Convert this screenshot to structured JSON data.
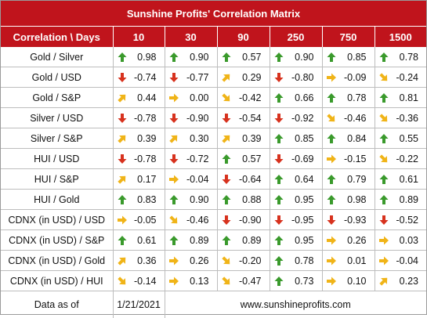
{
  "title": "Sunshine Profits' Correlation Matrix",
  "header": {
    "corner": "Correlation \\ Days",
    "columns": [
      "10",
      "30",
      "90",
      "250",
      "750",
      "1500"
    ]
  },
  "colors": {
    "header_bg": "#c0141c",
    "up": "#3a9a2c",
    "down": "#d7321e",
    "diag": "#f0b418",
    "flat": "#f0b418"
  },
  "rows": [
    {
      "label": "Gold / Silver",
      "cells": [
        {
          "value": "0.98",
          "icon": "up"
        },
        {
          "value": "0.90",
          "icon": "up"
        },
        {
          "value": "0.57",
          "icon": "up"
        },
        {
          "value": "0.90",
          "icon": "up"
        },
        {
          "value": "0.85",
          "icon": "up"
        },
        {
          "value": "0.78",
          "icon": "up"
        }
      ]
    },
    {
      "label": "Gold / USD",
      "cells": [
        {
          "value": "-0.74",
          "icon": "down"
        },
        {
          "value": "-0.77",
          "icon": "down"
        },
        {
          "value": "0.29",
          "icon": "up-right"
        },
        {
          "value": "-0.80",
          "icon": "down"
        },
        {
          "value": "-0.09",
          "icon": "right"
        },
        {
          "value": "-0.24",
          "icon": "down-right"
        }
      ]
    },
    {
      "label": "Gold / S&P",
      "cells": [
        {
          "value": "0.44",
          "icon": "up-right"
        },
        {
          "value": "0.00",
          "icon": "right"
        },
        {
          "value": "-0.42",
          "icon": "down-right"
        },
        {
          "value": "0.66",
          "icon": "up"
        },
        {
          "value": "0.78",
          "icon": "up"
        },
        {
          "value": "0.81",
          "icon": "up"
        }
      ]
    },
    {
      "label": "Silver / USD",
      "cells": [
        {
          "value": "-0.78",
          "icon": "down"
        },
        {
          "value": "-0.90",
          "icon": "down"
        },
        {
          "value": "-0.54",
          "icon": "down"
        },
        {
          "value": "-0.92",
          "icon": "down"
        },
        {
          "value": "-0.46",
          "icon": "down-right"
        },
        {
          "value": "-0.36",
          "icon": "down-right"
        }
      ]
    },
    {
      "label": "Silver / S&P",
      "cells": [
        {
          "value": "0.39",
          "icon": "up-right"
        },
        {
          "value": "0.30",
          "icon": "up-right"
        },
        {
          "value": "0.39",
          "icon": "up-right"
        },
        {
          "value": "0.85",
          "icon": "up"
        },
        {
          "value": "0.84",
          "icon": "up"
        },
        {
          "value": "0.55",
          "icon": "up"
        }
      ]
    },
    {
      "label": "HUI / USD",
      "cells": [
        {
          "value": "-0.78",
          "icon": "down"
        },
        {
          "value": "-0.72",
          "icon": "down"
        },
        {
          "value": "0.57",
          "icon": "up"
        },
        {
          "value": "-0.69",
          "icon": "down"
        },
        {
          "value": "-0.15",
          "icon": "right"
        },
        {
          "value": "-0.22",
          "icon": "down-right"
        }
      ]
    },
    {
      "label": "HUI / S&P",
      "cells": [
        {
          "value": "0.17",
          "icon": "up-right"
        },
        {
          "value": "-0.04",
          "icon": "right"
        },
        {
          "value": "-0.64",
          "icon": "down"
        },
        {
          "value": "0.64",
          "icon": "up"
        },
        {
          "value": "0.79",
          "icon": "up"
        },
        {
          "value": "0.61",
          "icon": "up"
        }
      ]
    },
    {
      "label": "HUI / Gold",
      "cells": [
        {
          "value": "0.83",
          "icon": "up"
        },
        {
          "value": "0.90",
          "icon": "up"
        },
        {
          "value": "0.88",
          "icon": "up"
        },
        {
          "value": "0.95",
          "icon": "up"
        },
        {
          "value": "0.98",
          "icon": "up"
        },
        {
          "value": "0.89",
          "icon": "up"
        }
      ]
    },
    {
      "label": "CDNX (in USD) / USD",
      "cells": [
        {
          "value": "-0.05",
          "icon": "right"
        },
        {
          "value": "-0.46",
          "icon": "down-right"
        },
        {
          "value": "-0.90",
          "icon": "down"
        },
        {
          "value": "-0.95",
          "icon": "down"
        },
        {
          "value": "-0.93",
          "icon": "down"
        },
        {
          "value": "-0.52",
          "icon": "down"
        }
      ]
    },
    {
      "label": "CDNX (in USD) / S&P",
      "cells": [
        {
          "value": "0.61",
          "icon": "up"
        },
        {
          "value": "0.89",
          "icon": "up"
        },
        {
          "value": "0.89",
          "icon": "up"
        },
        {
          "value": "0.95",
          "icon": "up"
        },
        {
          "value": "0.26",
          "icon": "right"
        },
        {
          "value": "0.03",
          "icon": "right"
        }
      ]
    },
    {
      "label": "CDNX (in USD) / Gold",
      "cells": [
        {
          "value": "0.36",
          "icon": "up-right"
        },
        {
          "value": "0.26",
          "icon": "right"
        },
        {
          "value": "-0.20",
          "icon": "down-right"
        },
        {
          "value": "0.78",
          "icon": "up"
        },
        {
          "value": "0.01",
          "icon": "right"
        },
        {
          "value": "-0.04",
          "icon": "right"
        }
      ]
    },
    {
      "label": "CDNX (in USD) / HUI",
      "cells": [
        {
          "value": "-0.14",
          "icon": "down-right"
        },
        {
          "value": "0.13",
          "icon": "right"
        },
        {
          "value": "-0.47",
          "icon": "down-right"
        },
        {
          "value": "0.73",
          "icon": "up"
        },
        {
          "value": "0.10",
          "icon": "right"
        },
        {
          "value": "0.23",
          "icon": "up-right"
        }
      ]
    }
  ],
  "footer": {
    "label": "Data as of",
    "date": "1/21/2021",
    "site": "www.sunshineprofits.com"
  }
}
